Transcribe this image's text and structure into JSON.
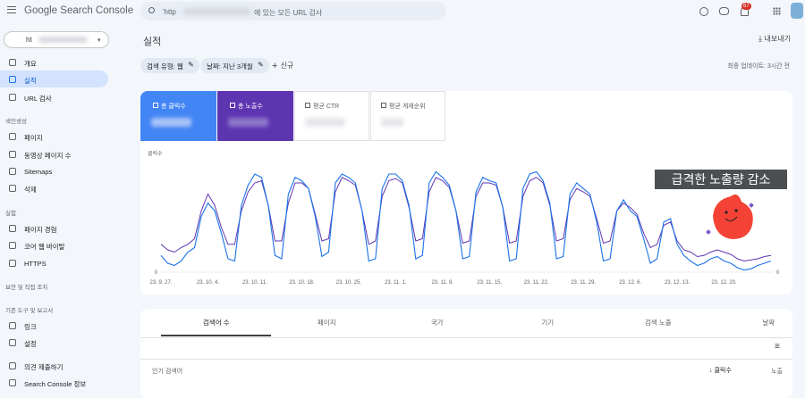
{
  "header": {
    "product": "Google Search Console",
    "search_prefix": "'http",
    "search_suffix": "에 있는 모든 URL 검사",
    "notification_count": 67
  },
  "sidebar": {
    "property": "ht",
    "top": [
      "개요",
      "실적",
      "URL 검사"
    ],
    "sections": [
      {
        "title": "색인생성",
        "items": [
          "페이지",
          "동영상 페이지 수",
          "Sitemaps",
          "삭제"
        ]
      },
      {
        "title": "실험",
        "items": [
          "페이지 경험",
          "코어 웹 바이탈",
          "HTTPS"
        ]
      },
      {
        "title": "보안 및 직접 조치",
        "items": []
      },
      {
        "title": "기존 도구 및 보고서",
        "items": []
      }
    ],
    "bottom": [
      "링크",
      "설정",
      "의견 제출하기",
      "Search Console 정보"
    ]
  },
  "main": {
    "title": "실적",
    "export": "내보내기",
    "filters": [
      "검색 유형: 웹",
      "날짜: 지난 3개월"
    ],
    "new_filter": "신규",
    "last_update": "최종 업데이트: 3시간 전",
    "metrics_other": [
      "평균 CTR",
      "평균 게재순위"
    ]
  },
  "chart_data": {
    "type": "line",
    "y_label": "클릭수",
    "annotation": "급격한 노출량 감소",
    "categories": [
      "23. 9. 27.",
      null,
      null,
      null,
      null,
      null,
      null,
      "23. 10. 4.",
      null,
      null,
      null,
      null,
      null,
      null,
      "23. 10. 11.",
      null,
      null,
      null,
      null,
      null,
      null,
      "23. 10. 18.",
      null,
      null,
      null,
      null,
      null,
      null,
      "23. 10. 25.",
      null,
      null,
      null,
      null,
      null,
      null,
      "23. 11. 1.",
      null,
      null,
      null,
      null,
      null,
      null,
      "23. 11. 8.",
      null,
      null,
      null,
      null,
      null,
      null,
      "23. 11. 15.",
      null,
      null,
      null,
      null,
      null,
      null,
      "23. 11. 22.",
      null,
      null,
      null,
      null,
      null,
      null,
      "23. 11. 29.",
      null,
      null,
      null,
      null,
      null,
      null,
      "23. 12. 6.",
      null,
      null,
      null,
      null,
      null,
      null,
      "23. 12. 13.",
      null,
      null,
      null,
      null,
      null,
      null,
      "23. 12. 20.",
      null,
      null,
      null,
      null,
      null,
      null,
      null
    ],
    "series": [
      {
        "name": "총 클릭수",
        "color": "#1a73e8",
        "values": [
          15,
          8,
          6,
          10,
          18,
          22,
          50,
          62,
          55,
          35,
          12,
          10,
          60,
          78,
          88,
          85,
          60,
          15,
          12,
          70,
          85,
          82,
          75,
          50,
          14,
          18,
          80,
          88,
          85,
          80,
          55,
          10,
          12,
          75,
          88,
          88,
          82,
          60,
          12,
          15,
          80,
          90,
          85,
          78,
          55,
          12,
          14,
          72,
          85,
          82,
          80,
          58,
          10,
          12,
          75,
          88,
          90,
          82,
          62,
          12,
          14,
          70,
          80,
          75,
          70,
          45,
          10,
          12,
          55,
          65,
          55,
          50,
          30,
          8,
          12,
          45,
          48,
          25,
          15,
          10,
          6,
          8,
          12,
          14,
          10,
          8,
          4,
          2,
          3,
          6,
          8,
          10
        ]
      },
      {
        "name": "총 노출수",
        "color": "#5e35b1",
        "axis": "y2",
        "values": [
          25,
          20,
          18,
          22,
          25,
          30,
          55,
          70,
          60,
          40,
          25,
          25,
          55,
          72,
          80,
          82,
          60,
          28,
          28,
          62,
          80,
          80,
          75,
          52,
          28,
          30,
          72,
          85,
          82,
          78,
          55,
          25,
          28,
          68,
          82,
          84,
          80,
          58,
          28,
          30,
          72,
          85,
          82,
          76,
          55,
          26,
          28,
          68,
          80,
          80,
          78,
          58,
          26,
          28,
          68,
          82,
          85,
          80,
          60,
          28,
          30,
          65,
          75,
          72,
          68,
          48,
          26,
          28,
          55,
          62,
          58,
          52,
          35,
          22,
          25,
          42,
          45,
          28,
          20,
          18,
          14,
          15,
          18,
          20,
          18,
          16,
          12,
          10,
          11,
          12,
          14,
          15
        ]
      }
    ],
    "ylim": [
      0,
      100
    ],
    "yticks": [
      0
    ],
    "y2lim": [
      0,
      100
    ],
    "y2ticks": [
      0
    ]
  },
  "tabs": [
    "검색어 수",
    "페이지",
    "국가",
    "기기",
    "검색 노출",
    "날짜"
  ],
  "table": {
    "columns": [
      "인기 검색어",
      "클릭수",
      "노출"
    ]
  }
}
